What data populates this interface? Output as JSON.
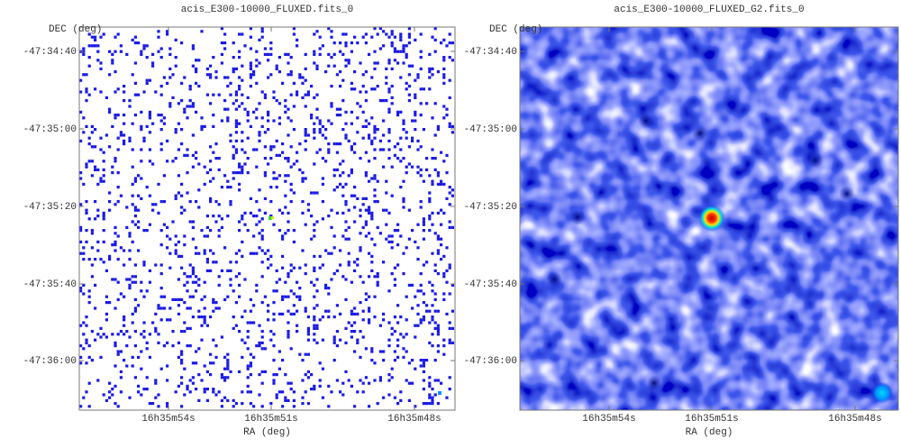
{
  "panels": [
    {
      "title": "acis_E300-10000_FLUXED.fits_0",
      "ylabel": "DEC (deg)",
      "xlabel": "RA (deg)",
      "yticks": [
        "-47:34:40",
        "-47:35:00",
        "-47:35:20",
        "-47:35:40",
        "-47:36:00"
      ],
      "xticks": [
        "16h35m54s",
        "16h35m51s",
        "16h35m48s"
      ]
    },
    {
      "title": "acis_E300-10000_FLUXED_G2.fits_0",
      "ylabel": "DEC (deg)",
      "xlabel": "RA (deg)",
      "yticks": [
        "-47:34:40",
        "-47:35:00",
        "-47:35:20",
        "-47:35:40",
        "-47:36:00"
      ],
      "xticks": [
        "16h35m54s",
        "16h35m51s",
        "16h35m48s"
      ]
    }
  ]
}
